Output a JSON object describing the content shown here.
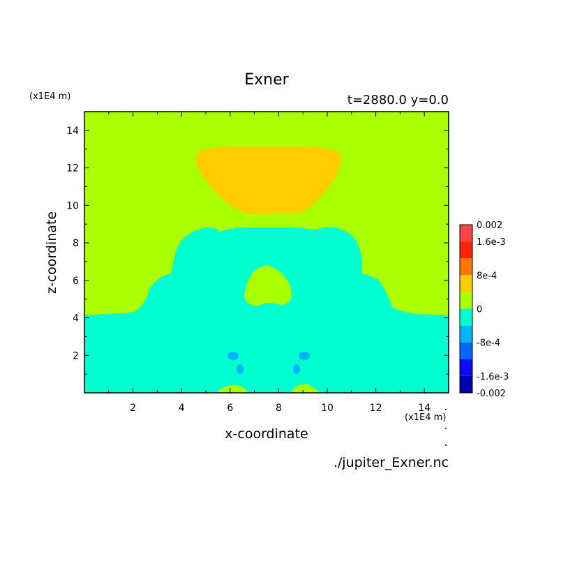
{
  "chart_data": {
    "type": "heatmap",
    "title": "Exner",
    "subtitle": "t=2880.0 y=0.0",
    "xlabel": "x-coordinate",
    "ylabel": "z-coordinate",
    "x_unit": "(x1E4 m)",
    "y_unit": "(x1E4 m)",
    "xlim": [
      0,
      15
    ],
    "ylim": [
      0,
      15
    ],
    "x_ticks": [
      "2",
      "4",
      "6",
      "8",
      "10",
      "12",
      "14"
    ],
    "y_ticks": [
      "2",
      "4",
      "6",
      "8",
      "10",
      "12",
      "14"
    ],
    "source_label": "./jupiter_Exner.nc",
    "colorbar": {
      "levels": [
        {
          "lower": "-0.002",
          "upper": "-0.0016",
          "color": "#0000b0"
        },
        {
          "lower": "-0.0016",
          "upper": "-0.0012",
          "color": "#0a0aff"
        },
        {
          "lower": "-0.0012",
          "upper": "-0.0008",
          "color": "#0066ff"
        },
        {
          "lower": "-0.0008",
          "upper": "-0.0004",
          "color": "#00b4ff"
        },
        {
          "lower": "-0.0004",
          "upper": "0",
          "color": "#00ffd0"
        },
        {
          "lower": "0",
          "upper": "0.0004",
          "color": "#aaff00"
        },
        {
          "lower": "0.0004",
          "upper": "0.0008",
          "color": "#ffcc00"
        },
        {
          "lower": "0.0008",
          "upper": "0.0012",
          "color": "#ff7700"
        },
        {
          "lower": "0.0012",
          "upper": "0.0016",
          "color": "#ff2200"
        },
        {
          "lower": "0.0016",
          "upper": "0.002",
          "color": "#ff4444"
        }
      ],
      "tick_labels": [
        "0.002",
        "1.6e-3",
        "8e-4",
        "0",
        "-8e-4",
        "-1.6e-3",
        "-0.002"
      ]
    },
    "regions": [
      {
        "name": "background",
        "level_range": "0 to 4e-4",
        "color": "#aaff00"
      },
      {
        "name": "upper-positive-lobe",
        "level_range": "4e-4 to 8e-4",
        "color": "#ffcc00",
        "x_range": [
          4.7,
          10.7
        ],
        "z_range": [
          9.4,
          13.1
        ]
      },
      {
        "name": "lower-negative-region",
        "level_range": "-4e-4 to 0",
        "color": "#00ffd0",
        "z_top": 8.8
      },
      {
        "name": "central-positive-bubble",
        "level_range": "0 to 4e-4",
        "color": "#aaff00",
        "x_range": [
          6.6,
          8.7
        ],
        "z_range": [
          4.5,
          6.7
        ]
      },
      {
        "name": "negative-spots",
        "level_range": "-8e-4 to -4e-4",
        "color": "#00b4ff",
        "z_range": [
          1.0,
          2.2
        ]
      },
      {
        "name": "bottom-positive-patches",
        "level_range": "0 to 4e-4",
        "color": "#aaff00",
        "z_range": [
          0,
          0.3
        ]
      }
    ]
  }
}
